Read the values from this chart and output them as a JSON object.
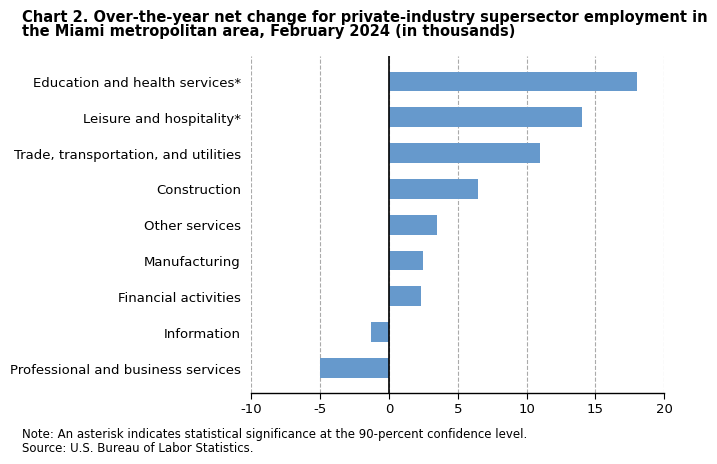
{
  "title_line1": "Chart 2. Over-the-year net change for private-industry supersector employment in",
  "title_line2": "the Miami metropolitan area, February 2024 (in thousands)",
  "categories": [
    "Professional and business services",
    "Information",
    "Financial activities",
    "Manufacturing",
    "Other services",
    "Construction",
    "Trade, transportation, and utilities",
    "Leisure and hospitality*",
    "Education and health services*"
  ],
  "values": [
    -5.0,
    -1.3,
    2.3,
    2.5,
    3.5,
    6.5,
    11.0,
    14.0,
    18.0
  ],
  "bar_color": "#6699CC",
  "xlim": [
    -10,
    20
  ],
  "xticks": [
    -10,
    -5,
    0,
    5,
    10,
    15,
    20
  ],
  "note_line1": "Note: An asterisk indicates statistical significance at the 90-percent confidence level.",
  "note_line2": "Source: U.S. Bureau of Labor Statistics.",
  "grid_color": "#AAAAAA",
  "title_fontsize": 10.5,
  "tick_fontsize": 9.5,
  "label_fontsize": 9.5,
  "note_fontsize": 8.5
}
